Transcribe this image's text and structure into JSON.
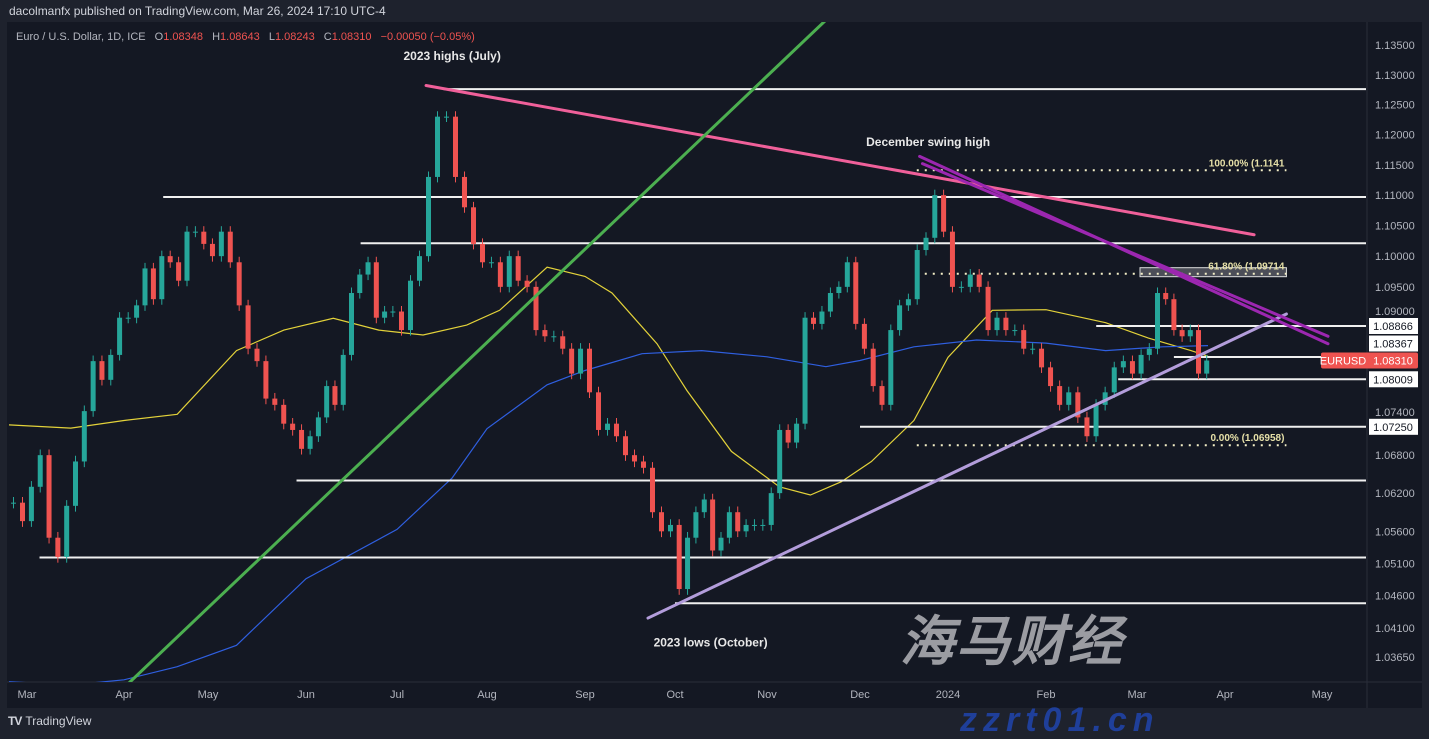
{
  "header": {
    "published": "dacolmanfx published on TradingView.com, Mar 26, 2024 17:10 UTC-4",
    "symbol_desc": "Euro / U.S. Dollar, 1D, ICE",
    "open_label": "O",
    "open": "1.08348",
    "high_label": "H",
    "high": "1.08643",
    "low_label": "L",
    "low": "1.08243",
    "close_label": "C",
    "close": "1.08310",
    "change": "−0.00050 (−0.05%)"
  },
  "footer": {
    "logo_mark": "TV",
    "brand": "TradingView"
  },
  "watermark": {
    "line1": "海马财经",
    "line2": "zzrt01.cn"
  },
  "colors": {
    "up": "#26a69a",
    "down": "#ef5350",
    "ma_fast": "#e3d23a",
    "ma_slow": "#2f5fe0",
    "trend_pink": "#f0609a",
    "trend_green": "#4caf50",
    "trend_lavender": "#b39ddb",
    "trend_purple": "#9c27b0",
    "last_price": "#ef5350"
  },
  "chart_data": {
    "type": "candlestick",
    "symbol": "EURUSD",
    "interval": "1D",
    "scale": "log",
    "ylim": [
      1.0327,
      1.1392
    ],
    "grid": false,
    "range": [
      "2023-02-23",
      "2024-03-26"
    ],
    "x_ticks": [
      {
        "date": "2023-03-01",
        "label": "Mar"
      },
      {
        "date": "2023-04-01",
        "label": "Apr"
      },
      {
        "date": "2023-05-01",
        "label": "May"
      },
      {
        "date": "2023-06-01",
        "label": "Jun"
      },
      {
        "date": "2023-07-01",
        "label": "Jul"
      },
      {
        "date": "2023-08-01",
        "label": "Aug"
      },
      {
        "date": "2023-09-01",
        "label": "Sep"
      },
      {
        "date": "2023-10-01",
        "label": "Oct"
      },
      {
        "date": "2023-11-01",
        "label": "Nov"
      },
      {
        "date": "2023-12-01",
        "label": "Dec"
      },
      {
        "date": "2024-01-01",
        "label": "2024"
      },
      {
        "date": "2024-02-01",
        "label": "Feb"
      },
      {
        "date": "2024-03-01",
        "label": "Mar"
      },
      {
        "date": "2024-04-01",
        "label": "Apr"
      },
      {
        "date": "2024-05-01",
        "label": "May"
      }
    ],
    "y_ticks": [
      {
        "value": 1.135,
        "label": "1.13500"
      },
      {
        "value": 1.13,
        "label": "1.13000"
      },
      {
        "value": 1.125,
        "label": "1.12500"
      },
      {
        "value": 1.12,
        "label": "1.12000"
      },
      {
        "value": 1.115,
        "label": "1.11500"
      },
      {
        "value": 1.11,
        "label": "1.11000"
      },
      {
        "value": 1.105,
        "label": "1.10500"
      },
      {
        "value": 1.1,
        "label": "1.10000"
      },
      {
        "value": 1.095,
        "label": "1.09500"
      },
      {
        "value": 1.09,
        "label": "1.09000"
      },
      {
        "value": 1.074,
        "label": "1.07400"
      },
      {
        "value": 1.068,
        "label": "1.06800"
      },
      {
        "value": 1.062,
        "label": "1.06200"
      },
      {
        "value": 1.056,
        "label": "1.05600"
      },
      {
        "value": 1.051,
        "label": "1.05100"
      },
      {
        "value": 1.046,
        "label": "1.04600"
      },
      {
        "value": 1.041,
        "label": "1.04100"
      },
      {
        "value": 1.0365,
        "label": "1.03650"
      }
    ],
    "closes_by_month": [
      {
        "month": "2023-02",
        "closes": [
          1.0605,
          1.0576
        ]
      },
      {
        "month": "2023-03",
        "closes": [
          1.063,
          1.068,
          1.055,
          1.052,
          1.06,
          1.067,
          1.075,
          1.083,
          1.08,
          1.084,
          1.09
        ]
      },
      {
        "month": "2023-04",
        "closes": [
          1.09,
          1.092,
          1.098,
          1.093,
          1.1,
          1.099,
          1.096,
          1.104,
          1.104,
          1.102
        ]
      },
      {
        "month": "2023-05",
        "closes": [
          1.1,
          1.104,
          1.099,
          1.092,
          1.085,
          1.083,
          1.077,
          1.076,
          1.073,
          1.072,
          1.069
        ]
      },
      {
        "month": "2023-06",
        "closes": [
          1.071,
          1.074,
          1.079,
          1.076,
          1.084,
          1.094,
          1.097,
          1.099,
          1.09,
          1.091,
          1.091
        ]
      },
      {
        "month": "2023-07",
        "closes": [
          1.088,
          1.096,
          1.1,
          1.113,
          1.123,
          1.123,
          1.113,
          1.108,
          1.102,
          1.099
        ]
      },
      {
        "month": "2023-08",
        "closes": [
          1.099,
          1.095,
          1.1,
          1.096,
          1.095,
          1.088,
          1.087,
          1.087,
          1.085,
          1.081,
          1.085
        ]
      },
      {
        "month": "2023-09",
        "closes": [
          1.078,
          1.072,
          1.073,
          1.071,
          1.068,
          1.067,
          1.066,
          1.059,
          1.056,
          1.057
        ]
      },
      {
        "month": "2023-10",
        "closes": [
          1.047,
          1.055,
          1.059,
          1.061,
          1.053,
          1.055,
          1.059,
          1.056,
          1.057,
          1.057,
          1.057
        ]
      },
      {
        "month": "2023-11",
        "closes": [
          1.062,
          1.072,
          1.07,
          1.073,
          1.09,
          1.089,
          1.091,
          1.094,
          1.095,
          1.099,
          1.089
        ]
      },
      {
        "month": "2023-12",
        "closes": [
          1.085,
          1.079,
          1.076,
          1.088,
          1.092,
          1.093,
          1.101,
          1.103,
          1.11,
          1.104
        ]
      },
      {
        "month": "2024-01",
        "closes": [
          1.095,
          1.095,
          1.097,
          1.095,
          1.088,
          1.09,
          1.088,
          1.088,
          1.085,
          1.085,
          1.082
        ]
      },
      {
        "month": "2024-02",
        "closes": [
          1.079,
          1.076,
          1.078,
          1.074,
          1.071,
          1.076,
          1.078,
          1.082,
          1.083,
          1.081
        ]
      },
      {
        "month": "2024-03",
        "closes": [
          1.084,
          1.085,
          1.094,
          1.093,
          1.088,
          1.087,
          1.088,
          1.081,
          1.0831
        ]
      }
    ],
    "moving_averages": [
      {
        "color": "#e3d23a",
        "points": [
          [
            "2023-02-23",
            1.0728
          ],
          [
            "2023-03-15",
            1.0723
          ],
          [
            "2023-04-01",
            1.0735
          ],
          [
            "2023-04-20",
            1.0745
          ],
          [
            "2023-05-10",
            1.0847
          ],
          [
            "2023-05-25",
            1.088
          ],
          [
            "2023-06-10",
            1.0899
          ],
          [
            "2023-06-25",
            1.088
          ],
          [
            "2023-07-10",
            1.0872
          ],
          [
            "2023-07-25",
            1.0888
          ],
          [
            "2023-08-05",
            1.0912
          ],
          [
            "2023-08-20",
            1.0982
          ],
          [
            "2023-09-01",
            1.0967
          ],
          [
            "2023-09-10",
            1.094
          ],
          [
            "2023-09-25",
            1.0858
          ],
          [
            "2023-10-05",
            1.0783
          ],
          [
            "2023-10-20",
            1.0686
          ],
          [
            "2023-11-05",
            1.063
          ],
          [
            "2023-11-15",
            1.0617
          ],
          [
            "2023-11-25",
            1.0638
          ],
          [
            "2023-12-05",
            1.067
          ],
          [
            "2023-12-20",
            1.0735
          ],
          [
            "2024-01-01",
            1.0836
          ],
          [
            "2024-01-15",
            1.0912
          ],
          [
            "2024-02-01",
            1.0913
          ],
          [
            "2024-02-20",
            1.0892
          ],
          [
            "2024-03-05",
            1.0867
          ],
          [
            "2024-03-20",
            1.0847
          ],
          [
            "2024-03-26",
            1.0838
          ]
        ]
      },
      {
        "color": "#2f5fe0",
        "points": [
          [
            "2023-02-23",
            1.0327
          ],
          [
            "2023-03-15",
            1.0322
          ],
          [
            "2023-04-01",
            1.033
          ],
          [
            "2023-04-20",
            1.035
          ],
          [
            "2023-05-10",
            1.0383
          ],
          [
            "2023-06-01",
            1.0486
          ],
          [
            "2023-07-01",
            1.0563
          ],
          [
            "2023-07-20",
            1.0644
          ],
          [
            "2023-08-01",
            1.0722
          ],
          [
            "2023-08-20",
            1.0792
          ],
          [
            "2023-09-01",
            1.0815
          ],
          [
            "2023-09-20",
            1.0842
          ],
          [
            "2023-10-10",
            1.0847
          ],
          [
            "2023-11-01",
            1.0837
          ],
          [
            "2023-11-20",
            1.0821
          ],
          [
            "2023-12-01",
            1.0831
          ],
          [
            "2023-12-20",
            1.0853
          ],
          [
            "2024-01-10",
            1.0864
          ],
          [
            "2024-02-01",
            1.0859
          ],
          [
            "2024-02-20",
            1.0847
          ],
          [
            "2024-03-10",
            1.0853
          ],
          [
            "2024-03-26",
            1.0855
          ]
        ]
      }
    ],
    "horizontal_levels": [
      {
        "price": 1.1276,
        "from": "2023-07-17"
      },
      {
        "price": 1.1097,
        "from": "2023-04-15"
      },
      {
        "price": 1.1021,
        "from": "2023-06-19"
      },
      {
        "price": 1.08866,
        "from": "2024-02-17",
        "label": "1.08866"
      },
      {
        "price": 1.08367,
        "from": "2024-03-14",
        "label": "1.08367"
      },
      {
        "price": 1.08009,
        "from": "2024-02-24",
        "label": "1.08009"
      },
      {
        "price": 1.0725,
        "from": "2023-12-01",
        "label": "1.07250"
      },
      {
        "price": 1.064,
        "from": "2023-05-29"
      },
      {
        "price": 1.0519,
        "from": "2023-03-05"
      },
      {
        "price": 1.0448,
        "from": "2023-10-01"
      }
    ],
    "fibonacci": {
      "from": "2023-12-21",
      "to": "2024-04-20",
      "levels": [
        {
          "price": 1.1141,
          "label": "100.00% (1.1141"
        },
        {
          "price": 1.09714,
          "label": "61.80% (1.09714"
        },
        {
          "price": 1.06958,
          "label": "0.00% (1.06958)"
        }
      ]
    },
    "trendlines": [
      {
        "color": "#f0609a",
        "start": [
          "2023-07-11",
          1.1282
        ],
        "end": [
          "2024-04-10",
          1.1035
        ]
      },
      {
        "color": "#4caf50",
        "start": [
          "2023-04-02",
          1.0322
        ],
        "end": [
          "2023-11-20",
          1.1392
        ]
      },
      {
        "color": "#b39ddb",
        "start": [
          "2023-09-22",
          1.0425
        ],
        "end": [
          "2024-04-20",
          1.0906
        ]
      },
      {
        "color": "#9c27b0",
        "start": [
          "2023-12-22",
          1.1164
        ],
        "end": [
          "2024-05-03",
          1.0858
        ]
      },
      {
        "color": "#9c27b0",
        "start": [
          "2023-12-23",
          1.1152
        ],
        "end": [
          "2024-05-03",
          1.087
        ]
      }
    ],
    "annotations": [
      {
        "text": "2023 highs (July)",
        "date": "2023-07-20",
        "price": 1.1325
      },
      {
        "text": "December swing high",
        "date": "2023-12-25",
        "price": 1.1181
      },
      {
        "text": "2023 lows (October)",
        "date": "2023-10-13",
        "price": 1.0381
      }
    ],
    "last_price": {
      "symbol": "EURUSD",
      "price": 1.0831,
      "label": "1.08310"
    }
  }
}
